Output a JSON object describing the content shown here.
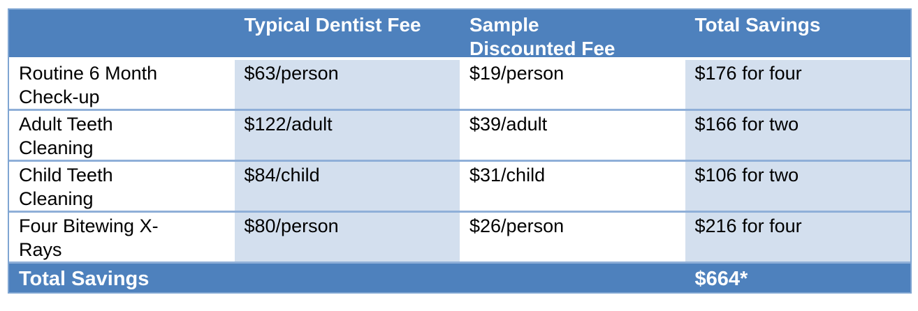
{
  "display": {
    "header": [
      "",
      "Typical Dentist Fee",
      "Sample\nDiscounted Fee",
      "Total Savings"
    ],
    "rows": [
      {
        "name": "Routine 6 Month\nCheck-up",
        "typical": "$63/person",
        "discounted": "$19/person",
        "savings": "$176 for four"
      },
      {
        "name": "Adult Teeth\nCleaning",
        "typical": "$122/adult",
        "discounted": "$39/adult",
        "savings": "$166 for two"
      },
      {
        "name": "Child Teeth\nCleaning",
        "typical": "$84/child",
        "discounted": "$31/child",
        "savings": "$106 for two"
      },
      {
        "name": "Four Bitewing X-\nRays",
        "typical": "$80/person",
        "discounted": "$26/person",
        "savings": "$216 for four"
      }
    ],
    "footer": {
      "label": "Total Savings",
      "total": "$664*"
    }
  },
  "chart_data": {
    "type": "table",
    "title": "",
    "columns": [
      "",
      "Typical Dentist Fee",
      "Sample Discounted Fee",
      "Total Savings"
    ],
    "rows": [
      [
        "Routine 6 Month Check-up",
        "$63/person",
        "$19/person",
        "$176 for four"
      ],
      [
        "Adult Teeth Cleaning",
        "$122/adult",
        "$39/adult",
        "$166 for two"
      ],
      [
        "Child Teeth Cleaning",
        "$84/child",
        "$31/child",
        "$106 for two"
      ],
      [
        "Four Bitewing X-Rays",
        "$80/person",
        "$26/person",
        "$216 for four"
      ]
    ],
    "footer_row": [
      "Total Savings",
      "",
      "",
      "$664*"
    ],
    "total_savings_value": "$664*",
    "layout_hints": {
      "banded_columns": true,
      "band_columns_shaded": [
        2,
        4
      ],
      "header_position": "top",
      "footer_style": "solid-accent-bar"
    }
  },
  "colors": {
    "header_fill": "#4E81BD",
    "footer_fill": "#4E81BD",
    "band_fill": "#D3DFEE",
    "outer_border": "#7FA5D2",
    "row_divider": "#8FAFD8",
    "header_text": "#FFFFFF",
    "body_text": "#000000",
    "page_background": "#FFFFFF"
  }
}
